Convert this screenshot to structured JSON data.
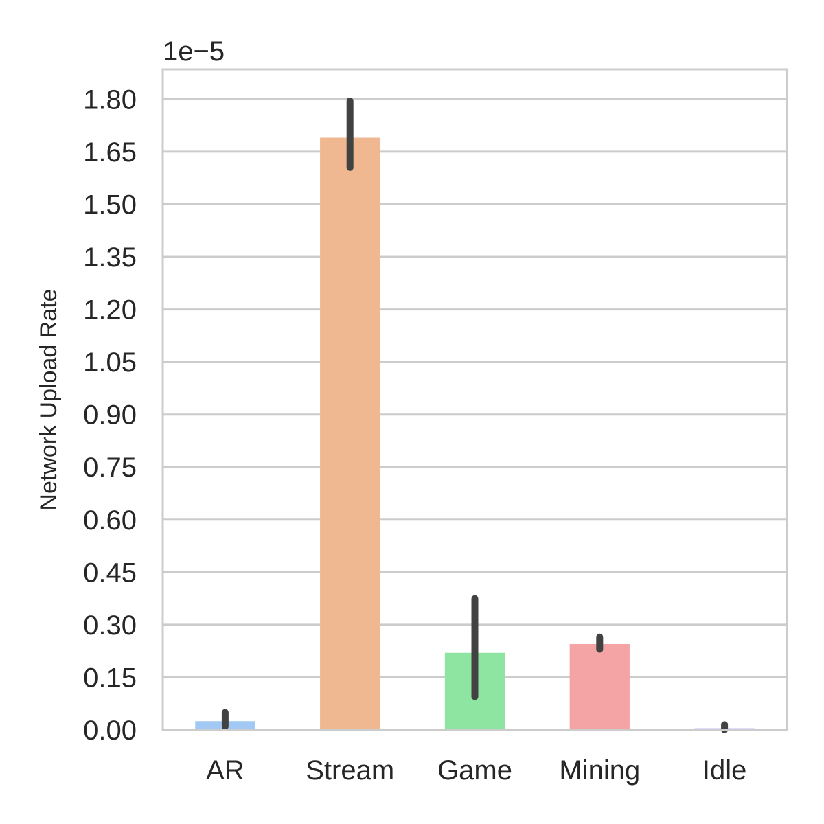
{
  "chart_data": {
    "type": "bar",
    "categories": [
      "AR",
      "Stream",
      "Game",
      "Mining",
      "Idle"
    ],
    "values": [
      0.025,
      1.69,
      0.22,
      0.245,
      0.005
    ],
    "error_low": [
      0.01,
      1.605,
      0.095,
      0.23,
      0.0
    ],
    "error_high": [
      0.05,
      1.795,
      0.375,
      0.265,
      0.015
    ],
    "colors": [
      "#a1c9f4",
      "#f0b890",
      "#8de5a1",
      "#f4a4a4",
      "#d0bbff"
    ],
    "error_color": "#424242",
    "title": "",
    "xlabel": "",
    "ylabel": "Network Upload Rate",
    "y_offset_label": "1e−5",
    "yticks": [
      0.0,
      0.15,
      0.3,
      0.45,
      0.6,
      0.75,
      0.9,
      1.05,
      1.2,
      1.35,
      1.5,
      1.65,
      1.8
    ],
    "ytick_labels": [
      "0.00",
      "0.15",
      "0.30",
      "0.45",
      "0.60",
      "0.75",
      "0.90",
      "1.05",
      "1.20",
      "1.35",
      "1.50",
      "1.65",
      "1.80"
    ],
    "ylim": [
      0.0,
      1.885
    ],
    "grid": true,
    "grid_color": "#cccccc",
    "spine_color": "#cccccc",
    "legend": "none"
  }
}
